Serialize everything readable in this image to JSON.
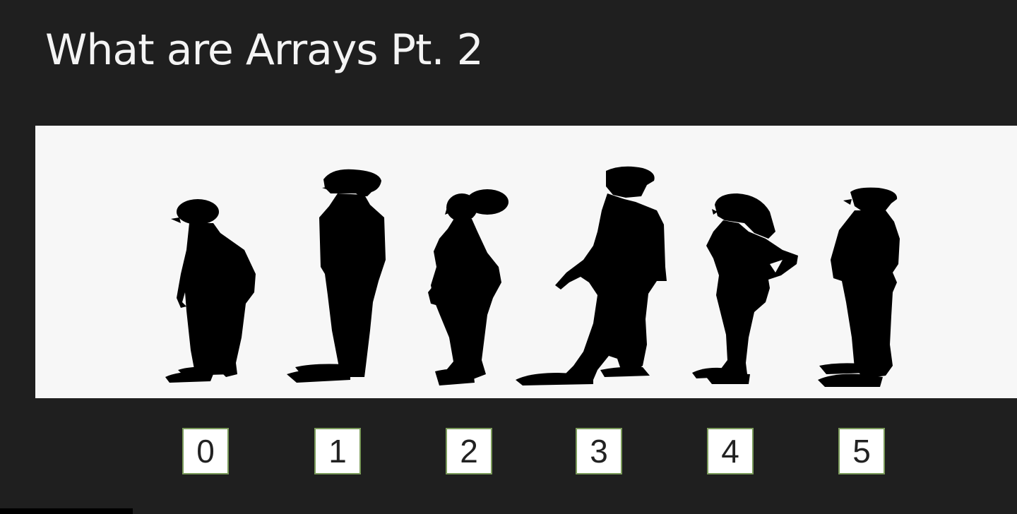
{
  "slide": {
    "title": "What are Arrays Pt. 2",
    "background_color": "#1f1f1f",
    "panel_color": "#f7f7f7",
    "box_border_color": "#7a9a5a"
  },
  "figures": [
    {
      "icon": "person-silhouette-icon",
      "index_label": "0"
    },
    {
      "icon": "person-silhouette-icon",
      "index_label": "1"
    },
    {
      "icon": "person-silhouette-icon",
      "index_label": "2"
    },
    {
      "icon": "person-silhouette-icon",
      "index_label": "3"
    },
    {
      "icon": "person-silhouette-icon",
      "index_label": "4"
    },
    {
      "icon": "person-silhouette-icon",
      "index_label": "5"
    }
  ]
}
